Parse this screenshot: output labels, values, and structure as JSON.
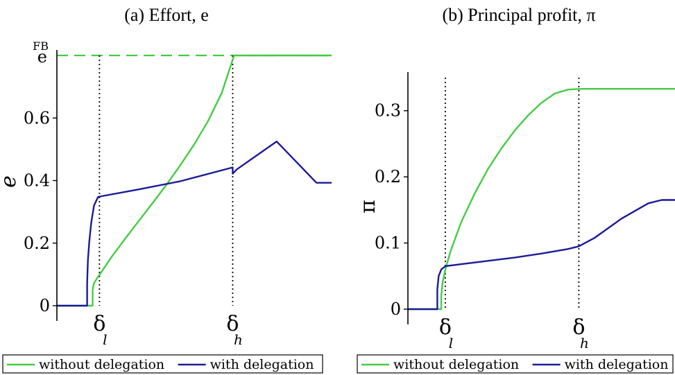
{
  "chart_data": [
    {
      "type": "line",
      "title": "(a) Effort, e",
      "ylabel": "e",
      "xlim": [
        0,
        1
      ],
      "ylim": [
        0,
        0.8
      ],
      "yticks": [
        {
          "value": 0,
          "label": "0"
        },
        {
          "value": 0.2,
          "label": "0.2"
        },
        {
          "value": 0.4,
          "label": "0.4"
        },
        {
          "value": 0.6,
          "label": "0.6"
        }
      ],
      "fb": {
        "value": 0.8,
        "label": "e",
        "superscript": "FB",
        "style": "dashed",
        "color": "#44cc44"
      },
      "markers": [
        {
          "x": 0.155,
          "symbol": "δ",
          "sub": "l"
        },
        {
          "x": 0.64,
          "symbol": "δ",
          "sub": "h"
        }
      ],
      "series": [
        {
          "name": "without delegation",
          "color": "#44cc44",
          "points": [
            [
              0,
              0
            ],
            [
              0.13,
              0
            ],
            [
              0.13,
              0.05
            ],
            [
              0.135,
              0.072
            ],
            [
              0.145,
              0.086
            ],
            [
              0.16,
              0.105
            ],
            [
              0.2,
              0.157
            ],
            [
              0.25,
              0.216
            ],
            [
              0.3,
              0.273
            ],
            [
              0.35,
              0.33
            ],
            [
              0.4,
              0.388
            ],
            [
              0.45,
              0.45
            ],
            [
              0.5,
              0.516
            ],
            [
              0.55,
              0.59
            ],
            [
              0.6,
              0.68
            ],
            [
              0.645,
              0.8
            ],
            [
              1.0,
              0.8
            ]
          ]
        },
        {
          "name": "with delegation",
          "color": "#1a1a99",
          "points": [
            [
              0,
              0
            ],
            [
              0.11,
              0
            ],
            [
              0.11,
              0.07
            ],
            [
              0.113,
              0.145
            ],
            [
              0.118,
              0.205
            ],
            [
              0.125,
              0.265
            ],
            [
              0.135,
              0.32
            ],
            [
              0.15,
              0.348
            ],
            [
              0.3,
              0.372
            ],
            [
              0.45,
              0.398
            ],
            [
              0.64,
              0.442
            ],
            [
              0.64,
              0.422
            ],
            [
              0.655,
              0.436
            ],
            [
              0.8,
              0.525
            ],
            [
              0.945,
              0.393
            ],
            [
              1.0,
              0.393
            ]
          ]
        }
      ]
    },
    {
      "type": "line",
      "title": "(b) Principal profit, π",
      "ylabel": "π",
      "xlim": [
        0,
        1
      ],
      "ylim": [
        0,
        0.35
      ],
      "yticks": [
        {
          "value": 0,
          "label": "0"
        },
        {
          "value": 0.1,
          "label": "0.1"
        },
        {
          "value": 0.2,
          "label": "0.2"
        },
        {
          "value": 0.3,
          "label": "0.3"
        }
      ],
      "markers": [
        {
          "x": 0.14,
          "symbol": "δ",
          "sub": "l"
        },
        {
          "x": 0.64,
          "symbol": "δ",
          "sub": "h"
        }
      ],
      "series": [
        {
          "name": "without delegation",
          "color": "#44cc44",
          "points": [
            [
              0,
              0
            ],
            [
              0.125,
              0
            ],
            [
              0.125,
              0.02
            ],
            [
              0.13,
              0.04
            ],
            [
              0.14,
              0.06
            ],
            [
              0.16,
              0.088
            ],
            [
              0.2,
              0.132
            ],
            [
              0.25,
              0.175
            ],
            [
              0.3,
              0.212
            ],
            [
              0.35,
              0.243
            ],
            [
              0.4,
              0.27
            ],
            [
              0.45,
              0.293
            ],
            [
              0.5,
              0.312
            ],
            [
              0.55,
              0.326
            ],
            [
              0.6,
              0.332
            ],
            [
              0.65,
              0.333
            ],
            [
              1.0,
              0.333
            ]
          ]
        },
        {
          "name": "with delegation",
          "color": "#1a1a99",
          "points": [
            [
              0,
              0
            ],
            [
              0.11,
              0
            ],
            [
              0.11,
              0.03
            ],
            [
              0.115,
              0.05
            ],
            [
              0.125,
              0.06
            ],
            [
              0.14,
              0.065
            ],
            [
              0.2,
              0.068
            ],
            [
              0.3,
              0.073
            ],
            [
              0.4,
              0.078
            ],
            [
              0.5,
              0.084
            ],
            [
              0.6,
              0.091
            ],
            [
              0.64,
              0.095
            ],
            [
              0.7,
              0.108
            ],
            [
              0.8,
              0.137
            ],
            [
              0.9,
              0.16
            ],
            [
              0.95,
              0.165
            ],
            [
              1.0,
              0.165
            ]
          ]
        }
      ]
    }
  ]
}
